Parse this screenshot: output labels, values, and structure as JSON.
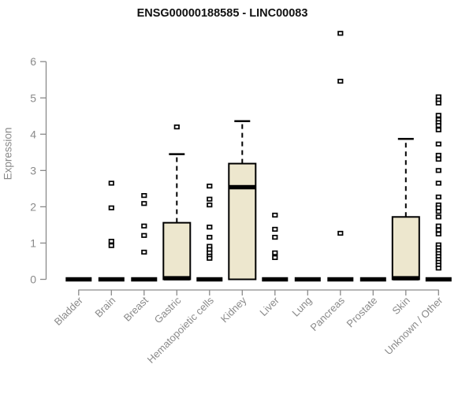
{
  "chart_data": {
    "type": "boxplot",
    "title": "ENSG00000188585 - LINC00083",
    "ylabel": "Expression",
    "xlabel": "",
    "yticks": [
      0,
      1,
      2,
      3,
      4,
      5,
      6
    ],
    "ylim": [
      0,
      6.9
    ],
    "grid": false,
    "legend": "none",
    "box_fill_color": "#ede7ce",
    "box_stroke_color": "#000000",
    "axis_color": "#8a8a8a",
    "title_color": "#111111",
    "categories": [
      "Bladder",
      "Brain",
      "Breast",
      "Gastric",
      "Hematopoietic cells",
      "Kidney",
      "Liver",
      "Lung",
      "Pancreas",
      "Prostate",
      "Skin",
      "Unknown / Other"
    ],
    "groups": [
      {
        "name": "Bladder",
        "q1": 0,
        "median": 0,
        "q3": 0,
        "whisker_low": 0,
        "whisker_high": 0,
        "outliers": []
      },
      {
        "name": "Brain",
        "q1": 0,
        "median": 0,
        "q3": 0,
        "whisker_low": 0,
        "whisker_high": 0,
        "outliers": [
          2.65,
          1.97,
          1.05,
          0.93
        ]
      },
      {
        "name": "Breast",
        "q1": 0,
        "median": 0,
        "q3": 0,
        "whisker_low": 0,
        "whisker_high": 0,
        "outliers": [
          2.31,
          2.09,
          1.47,
          1.21,
          0.75
        ]
      },
      {
        "name": "Gastric",
        "q1": 0,
        "median": 0.03,
        "q3": 1.56,
        "whisker_low": 0,
        "whisker_high": 3.45,
        "outliers": [
          4.2
        ]
      },
      {
        "name": "Hematopoietic cells",
        "q1": 0,
        "median": 0,
        "q3": 0,
        "whisker_low": 0,
        "whisker_high": 0,
        "outliers": [
          2.57,
          2.21,
          2.05,
          1.44,
          1.16,
          0.91,
          0.82,
          0.73,
          0.64,
          0.58
        ]
      },
      {
        "name": "Kidney",
        "q1": 0,
        "median": 2.54,
        "q3": 3.19,
        "whisker_low": 0,
        "whisker_high": 4.36,
        "outliers": []
      },
      {
        "name": "Liver",
        "q1": 0,
        "median": 0,
        "q3": 0,
        "whisker_low": 0,
        "whisker_high": 0,
        "outliers": [
          1.77,
          1.38,
          1.16,
          0.73,
          0.6
        ]
      },
      {
        "name": "Lung",
        "q1": 0,
        "median": 0,
        "q3": 0,
        "whisker_low": 0,
        "whisker_high": 0,
        "outliers": []
      },
      {
        "name": "Pancreas",
        "q1": 0,
        "median": 0,
        "q3": 0,
        "whisker_low": 0,
        "whisker_high": 0,
        "outliers": [
          6.78,
          5.46,
          1.27
        ]
      },
      {
        "name": "Prostate",
        "q1": 0,
        "median": 0,
        "q3": 0,
        "whisker_low": 0,
        "whisker_high": 0,
        "outliers": []
      },
      {
        "name": "Skin",
        "q1": 0,
        "median": 0.03,
        "q3": 1.72,
        "whisker_low": 0,
        "whisker_high": 3.87,
        "outliers": []
      },
      {
        "name": "Unknown / Other",
        "q1": 0,
        "median": 0,
        "q3": 0,
        "whisker_low": 0,
        "whisker_high": 0,
        "outliers": [
          5.03,
          4.94,
          4.86,
          4.52,
          4.4,
          4.32,
          4.24,
          4.12,
          3.73,
          3.42,
          3.31,
          3.0,
          2.65,
          2.27,
          2.05,
          1.97,
          1.87,
          1.72,
          1.47,
          1.36,
          1.25,
          0.95,
          0.87,
          0.79,
          0.71,
          0.63,
          0.55,
          0.47,
          0.39,
          0.31
        ]
      }
    ]
  }
}
